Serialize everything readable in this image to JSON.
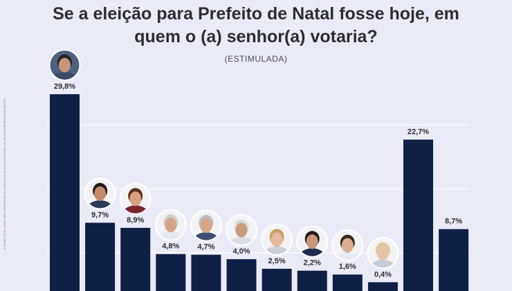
{
  "title_line1": "Se a eleição para Prefeito de Natal fosse hoje, em",
  "title_line2": "quem o (a) senhor(a) votaria?",
  "subtitle": "(ESTIMULADA)",
  "side_note": "A SOMA TOTAL PODE SER DIFERENTE DE 100% EM ALGUNS CASOS POR CAUSA DOS ARREDONDAMENTOS",
  "colors": {
    "bar": "#0f1f45",
    "background": "#ebebf8",
    "grid": "#ffffff"
  },
  "chart_data": {
    "type": "bar",
    "title": "Se a eleição para Prefeito de Natal fosse hoje, em quem o (a) senhor(a) votaria?",
    "subtitle": "(ESTIMULADA)",
    "unit": "%",
    "ylim": [
      0,
      30
    ],
    "grid": true,
    "legend": "none",
    "categories": [
      "",
      "",
      "",
      "",
      "",
      "",
      "",
      "",
      "",
      "",
      "",
      ""
    ],
    "labels": [
      "29,8%",
      "9,7%",
      "8,9%",
      "4,8%",
      "4,7%",
      "4,0%",
      "2,5%",
      "2,2%",
      "1,6%",
      "0,4%",
      "22,7%",
      "8,7%"
    ],
    "values": [
      29.8,
      9.7,
      8.9,
      4.8,
      4.7,
      4.0,
      2.5,
      2.2,
      1.6,
      0.4,
      22.7,
      8.7
    ],
    "avatars": [
      true,
      true,
      true,
      true,
      true,
      true,
      true,
      true,
      true,
      true,
      false,
      false
    ]
  }
}
